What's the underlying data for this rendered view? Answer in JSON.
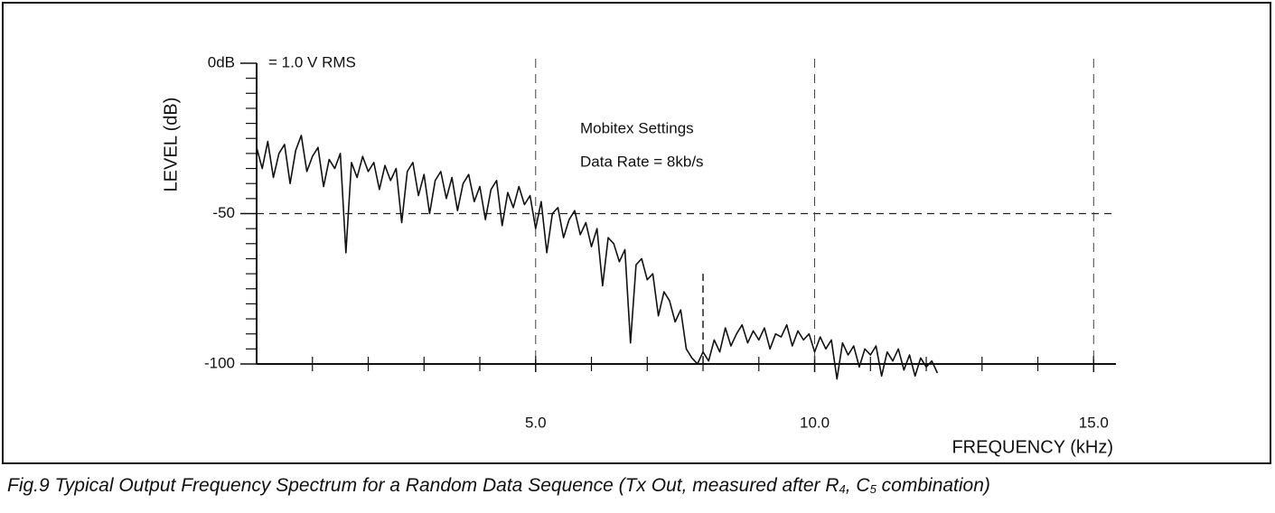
{
  "chart_data": {
    "type": "line",
    "annotations": [
      "= 1.0 V RMS",
      "Mobitex Settings",
      "Data Rate = 8kb/s"
    ],
    "ylabel": "LEVEL (dB)",
    "xlabel": "FREQUENCY (kHz)",
    "caption": [
      "Fig.9 Typical Output Frequency Spectrum for a Random Data Sequence (Tx Out, measured after R",
      "4",
      ", C",
      "5",
      " combination)"
    ],
    "xlim": [
      0,
      15.4
    ],
    "ylim": [
      -100,
      0
    ],
    "xticks": [
      {
        "value": 5,
        "label": "5.0"
      },
      {
        "value": 10,
        "label": "10.0"
      },
      {
        "value": 15,
        "label": "15.0"
      }
    ],
    "yticks": [
      {
        "value": 0,
        "label": "0dB"
      },
      -50,
      -100
    ],
    "x_minor_ticks": [
      1,
      2,
      3,
      4,
      6,
      7,
      8,
      9,
      11,
      12,
      13,
      14
    ],
    "y_minor_ticks": [
      -5,
      -10,
      -15,
      -20,
      -25,
      -30,
      -35,
      -40,
      -45,
      -55,
      -60,
      -65,
      -70,
      -75,
      -80,
      -85,
      -90,
      -95
    ],
    "grid": true,
    "reference_line": {
      "x": 8,
      "y": [
        -70,
        -100
      ]
    },
    "color": "#111111",
    "x": [
      0.0,
      0.1,
      0.2,
      0.3,
      0.4,
      0.5,
      0.6,
      0.7,
      0.8,
      0.9,
      1.0,
      1.1,
      1.2,
      1.3,
      1.4,
      1.5,
      1.6,
      1.7,
      1.8,
      1.9,
      2.0,
      2.1,
      2.2,
      2.3,
      2.4,
      2.5,
      2.6,
      2.7,
      2.8,
      2.9,
      3.0,
      3.1,
      3.2,
      3.3,
      3.4,
      3.5,
      3.6,
      3.7,
      3.8,
      3.9,
      4.0,
      4.1,
      4.2,
      4.3,
      4.4,
      4.5,
      4.6,
      4.7,
      4.8,
      4.9,
      5.0,
      5.1,
      5.2,
      5.3,
      5.4,
      5.5,
      5.6,
      5.7,
      5.8,
      5.9,
      6.0,
      6.1,
      6.2,
      6.3,
      6.4,
      6.5,
      6.6,
      6.7,
      6.8,
      6.9,
      7.0,
      7.1,
      7.2,
      7.3,
      7.4,
      7.5,
      7.6,
      7.7,
      7.8,
      7.9,
      8.0,
      8.1,
      8.2,
      8.3,
      8.4,
      8.5,
      8.6,
      8.7,
      8.8,
      8.9,
      9.0,
      9.1,
      9.2,
      9.3,
      9.4,
      9.5,
      9.6,
      9.7,
      9.8,
      9.9,
      10.0,
      10.1,
      10.2,
      10.3,
      10.4,
      10.5,
      10.6,
      10.7,
      10.8,
      10.9,
      11.0,
      11.1,
      11.2,
      11.3,
      11.4,
      11.5,
      11.6,
      11.7,
      11.8,
      11.9,
      12.0,
      12.1,
      12.2
    ],
    "values": [
      -28,
      -35,
      -26,
      -38,
      -30,
      -27,
      -40,
      -29,
      -24,
      -36,
      -31,
      -28,
      -41,
      -32,
      -35,
      -30,
      -63,
      -33,
      -38,
      -31,
      -36,
      -33,
      -42,
      -34,
      -39,
      -35,
      -53,
      -36,
      -33,
      -44,
      -37,
      -50,
      -39,
      -36,
      -45,
      -38,
      -49,
      -40,
      -37,
      -46,
      -41,
      -52,
      -42,
      -39,
      -54,
      -43,
      -48,
      -41,
      -47,
      -44,
      -55,
      -46,
      -63,
      -50,
      -48,
      -58,
      -52,
      -49,
      -57,
      -53,
      -61,
      -55,
      -74,
      -58,
      -60,
      -66,
      -62,
      -93,
      -67,
      -65,
      -72,
      -70,
      -84,
      -76,
      -79,
      -86,
      -82,
      -95,
      -98,
      -100,
      -96,
      -99,
      -92,
      -96,
      -88,
      -94,
      -90,
      -87,
      -93,
      -89,
      -92,
      -88,
      -95,
      -90,
      -91,
      -87,
      -94,
      -89,
      -92,
      -90,
      -96,
      -91,
      -95,
      -92,
      -105,
      -93,
      -97,
      -94,
      -101,
      -95,
      -97,
      -94,
      -104,
      -96,
      -99,
      -95,
      -102,
      -97,
      -104,
      -98,
      -101,
      -99,
      -103
    ]
  }
}
